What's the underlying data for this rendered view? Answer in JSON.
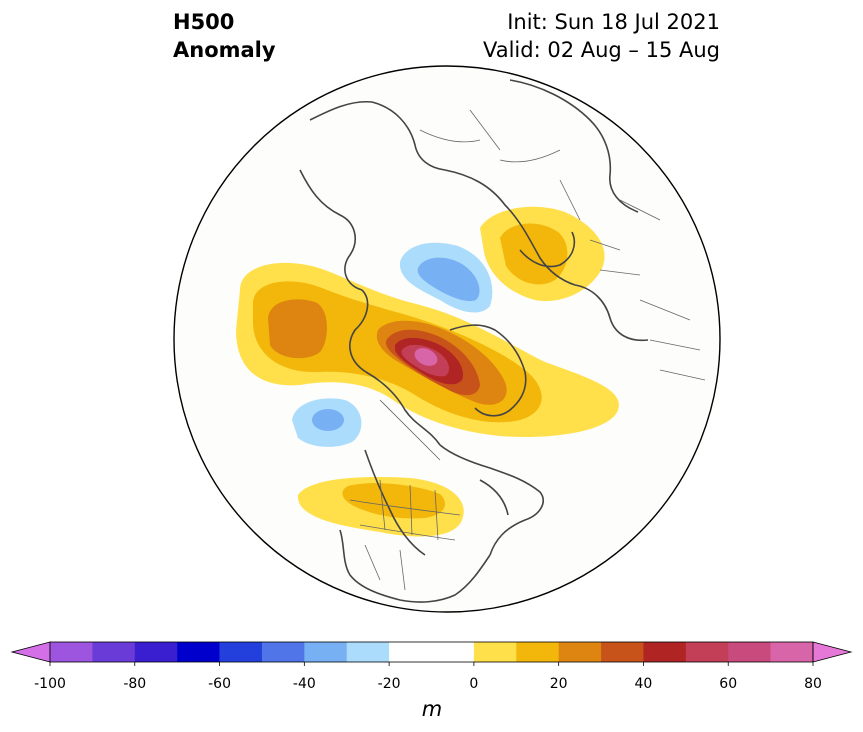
{
  "header": {
    "title_line1": "H500",
    "title_line2": "Anomaly",
    "init": "Init: Sun 18 Jul 2021",
    "valid": "Valid: 02 Aug – 15 Aug"
  },
  "map": {
    "projection": "north-polar-stereographic",
    "region": "North America / Arctic",
    "anomaly_centers": [
      {
        "sign": "positive",
        "max_m": 70,
        "location": "Baffin Bay / Canadian Arctic Archipelago"
      },
      {
        "sign": "positive",
        "max_m": 40,
        "location": "Alaska / Bering Sea"
      },
      {
        "sign": "positive",
        "max_m": 30,
        "location": "Scandinavia / Barents region"
      },
      {
        "sign": "positive",
        "max_m": 20,
        "location": "Northern United States"
      },
      {
        "sign": "negative",
        "min_m": -40,
        "location": "Kara Sea / Siberian Arctic"
      },
      {
        "sign": "negative",
        "min_m": -40,
        "location": "North Pacific / Gulf of Alaska"
      }
    ]
  },
  "colorbar": {
    "ticks": [
      "-100",
      "-80",
      "-60",
      "-40",
      "-20",
      "0",
      "20",
      "40",
      "60",
      "80",
      "100"
    ],
    "unit": "m",
    "colors": [
      "#d46fe8",
      "#9d55e0",
      "#6b3bd8",
      "#3a1fd0",
      "#0000cc",
      "#2340dc",
      "#4f75e8",
      "#78b0f4",
      "#acdcfc",
      "#ffffff",
      "#ffffff",
      "#ffe04a",
      "#f2b70a",
      "#dd8510",
      "#c8531a",
      "#b12424",
      "#c23f57",
      "#c94a7c",
      "#d865a8",
      "#e679d8"
    ]
  }
}
